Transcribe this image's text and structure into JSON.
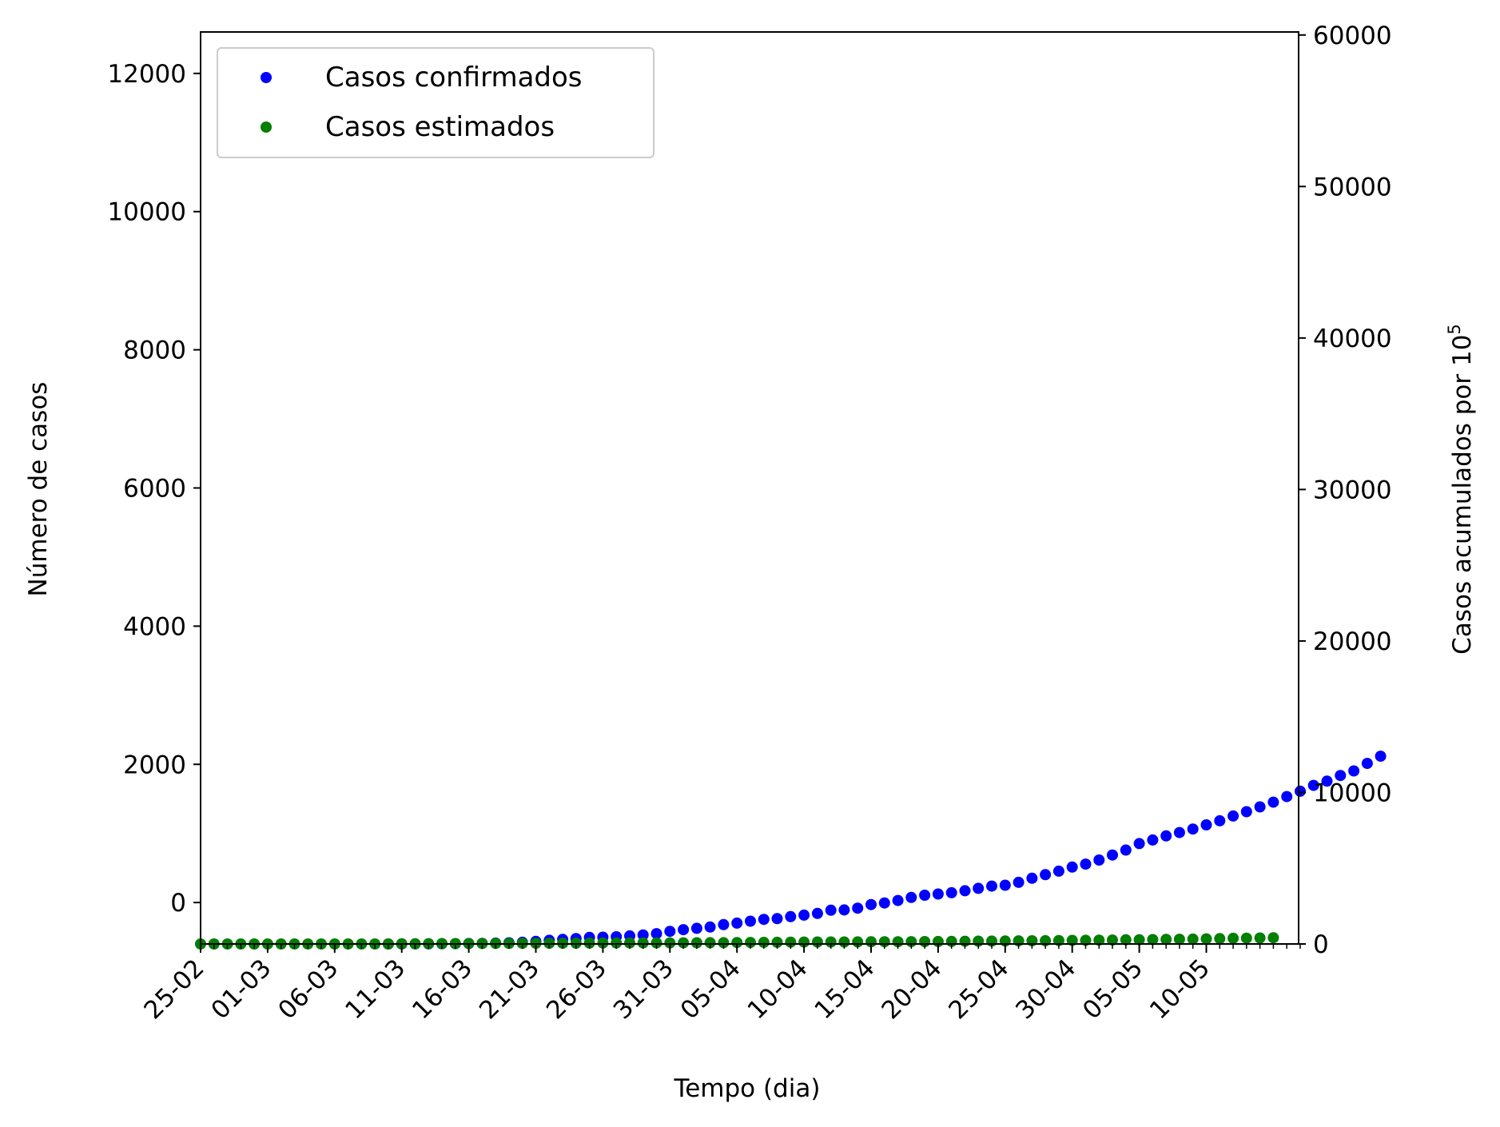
{
  "chart_data": {
    "type": "scatter",
    "xlabel": "Tempo (dia)",
    "ylabel_left": "Número de casos",
    "ylabel_right_prefix": "Casos acumulados por 10",
    "ylabel_right_exponent": "5",
    "x_tick_labels": [
      "25-02",
      "01-03",
      "06-03",
      "11-03",
      "16-03",
      "21-03",
      "26-03",
      "31-03",
      "05-04",
      "10-04",
      "15-04",
      "20-04",
      "25-04",
      "30-04",
      "05-05",
      "10-05"
    ],
    "x_range_days": [
      0,
      82
    ],
    "ylim_left": [
      -600,
      12600
    ],
    "yticks_left": [
      0,
      2000,
      4000,
      6000,
      8000,
      10000,
      12000
    ],
    "ylim_right": [
      0,
      60200
    ],
    "yticks_right": [
      0,
      10000,
      20000,
      30000,
      40000,
      50000,
      60000
    ],
    "legend_position": "top-left",
    "series": [
      {
        "name": "Casos confirmados",
        "color": "#0000ff",
        "start_day": 14,
        "values": [
          2,
          2,
          4,
          5,
          9,
          15,
          31,
          41,
          59,
          78,
          112,
          169,
          245,
          302,
          358,
          435,
          448,
          476,
          534,
          596,
          681,
          834,
          947,
          1032,
          1117,
          1279,
          1375,
          1502,
          1625,
          1672,
          1802,
          1904,
          2016,
          2224,
          2247,
          2365,
          2601,
          2709,
          2871,
          3069,
          3219,
          3300,
          3384,
          3513,
          3673,
          3818,
          3878,
          4069,
          4336,
          4575,
          4807,
          5073,
          5269,
          5541,
          5872,
          6202,
          6626,
          6866,
          7131,
          7354,
          7588,
          7859,
          8130,
          8445,
          8730,
          9050,
          9358,
          9731,
          10085,
          10467,
          10750,
          11124,
          11424,
          11920,
          12396
        ]
      },
      {
        "name": "Casos estimados",
        "color": "#007f00",
        "start_day": 0,
        "values": [
          0,
          0,
          0,
          0,
          0,
          0,
          0,
          0,
          0,
          0,
          0,
          0,
          0,
          0,
          2,
          8,
          13,
          19,
          25,
          28,
          28,
          31,
          36,
          38,
          41,
          43,
          45,
          48,
          53,
          56,
          61,
          65,
          68,
          71,
          71,
          70,
          74,
          79,
          83,
          87,
          94,
          101,
          108,
          113,
          120,
          126,
          130,
          132,
          133,
          139,
          144,
          148,
          150,
          154,
          158,
          163,
          169,
          177,
          184,
          189,
          195,
          204,
          210,
          218,
          226,
          235,
          245,
          251,
          261,
          272,
          281,
          292,
          299,
          309,
          321,
          338,
          356,
          372,
          384,
          398,
          411
        ]
      }
    ]
  }
}
